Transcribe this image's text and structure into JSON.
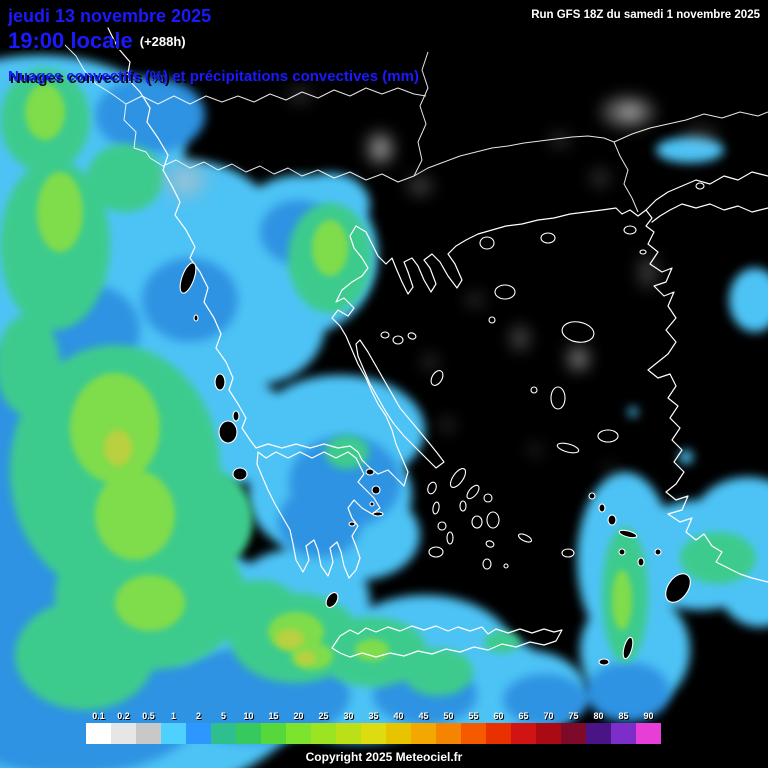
{
  "header": {
    "date": "jeudi 13 novembre 2025",
    "time": "19:00 locale",
    "offset": "(+288h)",
    "run": "Run GFS 18Z du samedi 1 novembre 2025",
    "subtitle": "Nuages convectifs (%) et précipitations convectives (mm)"
  },
  "legend": {
    "items": [
      {
        "label": "0.1",
        "color": "#ffffff"
      },
      {
        "label": "0.2",
        "color": "#e6e6e6"
      },
      {
        "label": "0.5",
        "color": "#c8c8c8"
      },
      {
        "label": "1",
        "color": "#4fd1ff"
      },
      {
        "label": "2",
        "color": "#2e96ff"
      },
      {
        "label": "5",
        "color": "#2fbe8e"
      },
      {
        "label": "10",
        "color": "#38c95e"
      },
      {
        "label": "15",
        "color": "#57d83a"
      },
      {
        "label": "20",
        "color": "#7ce42c"
      },
      {
        "label": "25",
        "color": "#9ce422"
      },
      {
        "label": "30",
        "color": "#bce018"
      },
      {
        "label": "35",
        "color": "#dcdc10"
      },
      {
        "label": "40",
        "color": "#e8c400"
      },
      {
        "label": "45",
        "color": "#f2a800"
      },
      {
        "label": "50",
        "color": "#f58400"
      },
      {
        "label": "55",
        "color": "#f55a00"
      },
      {
        "label": "60",
        "color": "#e83000"
      },
      {
        "label": "65",
        "color": "#d01414"
      },
      {
        "label": "70",
        "color": "#aa0a14"
      },
      {
        "label": "75",
        "color": "#7c0a28"
      },
      {
        "label": "80",
        "color": "#4a1486"
      },
      {
        "label": "85",
        "color": "#7e2ec8"
      },
      {
        "label": "90",
        "color": "#e83ed8"
      }
    ]
  },
  "footer": {
    "copyright": "Copyright 2025 Meteociel.fr"
  },
  "colors": {
    "title_text": "#1a1aff",
    "map_background": "#000000",
    "coastline": "#ffffff",
    "precip_cyan": "#4ec3f5",
    "precip_blue": "#2f93e2",
    "precip_green": "#3ecb8d",
    "precip_bright_green": "#7fdc4b",
    "precip_olive": "#b9d041"
  }
}
